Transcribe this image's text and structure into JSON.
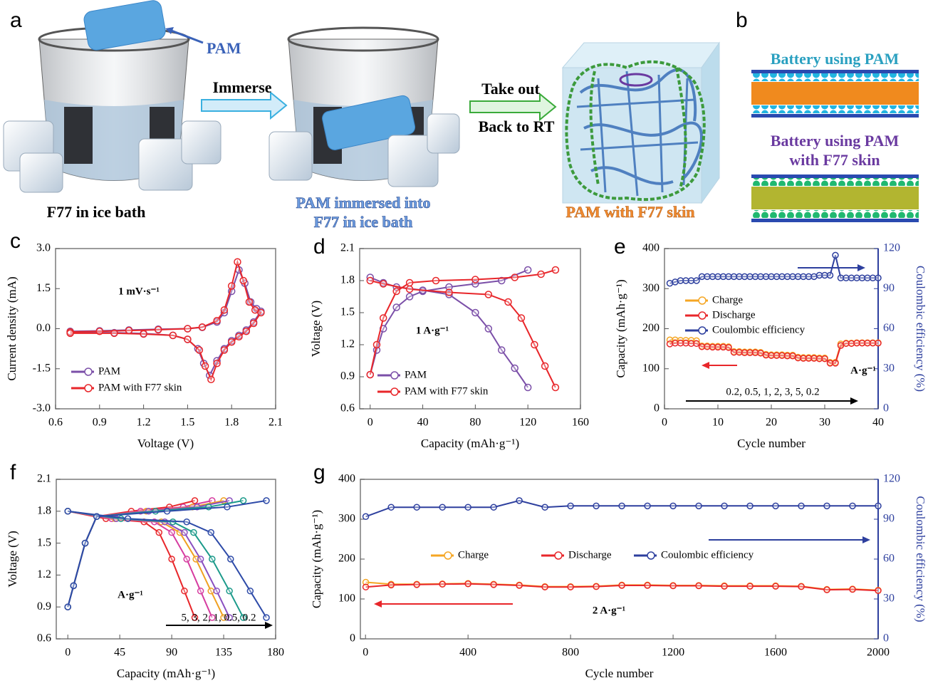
{
  "panel_a": {
    "label": "a",
    "pam": "PAM",
    "step_1": "Immerse",
    "step_2_line_1": "Take out",
    "step_2_line_2": "Back to RT",
    "caption_1": "F77 in ice bath",
    "caption_2_line_1": "PAM immersed into",
    "caption_2_line_2": "F77 in ice bath",
    "caption_3": "PAM with F77 skin"
  },
  "panel_b": {
    "label": "b",
    "title_1": "Battery using PAM",
    "title_2_line_1": "Battery using PAM",
    "title_2_line_2": "with F77 skin"
  },
  "chart_data": [
    {
      "type": "line",
      "label": "c",
      "x_label": "Voltage (V)",
      "y_label": "Current density (mA)",
      "xlim": [
        0.6,
        2.1
      ],
      "xticks": [
        0.6,
        0.9,
        1.2,
        1.5,
        1.8,
        2.1
      ],
      "ylim": [
        -3,
        3
      ],
      "yticks": [
        {
          "value": -3,
          "label": "-3.0"
        },
        -1.5,
        {
          "value": 0,
          "label": "0.0"
        },
        1.5,
        {
          "value": 3,
          "label": "3.0"
        }
      ],
      "legend": "lower left",
      "annotations": [
        "1 mV·s⁻¹"
      ],
      "series": [
        {
          "name": "PAM",
          "color": "#7b4fa8",
          "x": [
            0.7,
            0.9,
            1.1,
            1.3,
            1.5,
            1.6,
            1.7,
            1.75,
            1.8,
            1.85,
            1.89,
            1.93,
            1.97,
            2.0,
            1.95,
            1.9,
            1.85,
            1.8,
            1.75,
            1.7,
            1.65,
            1.61,
            1.57,
            1.5,
            1.4,
            1.2,
            1.0,
            0.7
          ],
          "values": [
            -0.1,
            -0.08,
            -0.05,
            -0.02,
            0.0,
            0.05,
            0.25,
            0.6,
            1.4,
            2.2,
            1.7,
            1.0,
            0.75,
            0.65,
            0.25,
            -0.05,
            -0.25,
            -0.45,
            -0.75,
            -1.2,
            -1.75,
            -1.3,
            -0.75,
            -0.4,
            -0.25,
            -0.18,
            -0.15,
            -0.15
          ]
        },
        {
          "name": "PAM with F77 skin",
          "color": "#e8262a",
          "x": [
            0.7,
            0.9,
            1.1,
            1.3,
            1.5,
            1.6,
            1.7,
            1.75,
            1.8,
            1.84,
            1.88,
            1.92,
            1.96,
            2.0,
            1.95,
            1.9,
            1.85,
            1.8,
            1.75,
            1.7,
            1.66,
            1.62,
            1.58,
            1.5,
            1.4,
            1.2,
            1.0,
            0.7
          ],
          "values": [
            -0.12,
            -0.1,
            -0.07,
            -0.04,
            0.0,
            0.06,
            0.3,
            0.7,
            1.6,
            2.5,
            1.8,
            1.0,
            0.7,
            0.6,
            0.2,
            -0.1,
            -0.3,
            -0.5,
            -0.8,
            -1.3,
            -1.9,
            -1.4,
            -0.8,
            -0.4,
            -0.25,
            -0.2,
            -0.17,
            -0.17
          ]
        }
      ]
    },
    {
      "type": "line",
      "label": "d",
      "x_label": "Capacity (mAh·g⁻¹)",
      "y_label": "Voltage (V)",
      "xlim": [
        -8,
        160
      ],
      "xticks": [
        0,
        40,
        80,
        120,
        160
      ],
      "ylim": [
        0.6,
        2.1
      ],
      "yticks": [
        0.6,
        0.9,
        1.2,
        1.5,
        1.8,
        2.1
      ],
      "legend": "lower left",
      "annotations": [
        "1 A·g⁻¹"
      ],
      "series": [
        {
          "name": "PAM",
          "color": "#7b4fa8",
          "x": [
            0,
            5,
            10,
            20,
            30,
            40,
            60,
            80,
            100,
            120,
            null,
            0,
            10,
            20,
            40,
            60,
            80,
            90,
            100,
            110,
            120
          ],
          "values": [
            0.92,
            1.15,
            1.35,
            1.55,
            1.65,
            1.7,
            1.74,
            1.77,
            1.8,
            1.9,
            null,
            1.83,
            1.78,
            1.74,
            1.71,
            1.67,
            1.5,
            1.35,
            1.15,
            0.98,
            0.8
          ]
        },
        {
          "name": "PAM with F77 skin",
          "color": "#e8262a",
          "x": [
            0,
            5,
            10,
            20,
            30,
            50,
            80,
            110,
            130,
            141,
            null,
            0,
            10,
            30,
            60,
            90,
            105,
            115,
            125,
            133,
            141
          ],
          "values": [
            0.92,
            1.2,
            1.45,
            1.7,
            1.78,
            1.8,
            1.81,
            1.83,
            1.86,
            1.9,
            null,
            1.8,
            1.77,
            1.72,
            1.69,
            1.67,
            1.6,
            1.45,
            1.2,
            1.0,
            0.8
          ]
        }
      ]
    },
    {
      "type": "line",
      "label": "e",
      "x_label": "Cycle number",
      "y_label": "Capacity (mAh·g⁻¹)",
      "y2_label": "Coulombic efficiency (%)",
      "xlim": [
        0,
        40
      ],
      "xticks": [
        0,
        10,
        20,
        30,
        40
      ],
      "ylim": [
        0,
        400
      ],
      "yticks": [
        0,
        100,
        200,
        300,
        400
      ],
      "y2lim": [
        0,
        120
      ],
      "y2ticks": [
        0,
        30,
        60,
        90,
        120
      ],
      "legend": "center left",
      "annotations": [
        "0.2, 0.5, 1, 2, 3, 5, 0.2",
        "A·g⁻¹"
      ],
      "x": [
        1,
        2,
        3,
        4,
        5,
        6,
        7,
        8,
        9,
        10,
        11,
        12,
        13,
        14,
        15,
        16,
        17,
        18,
        19,
        20,
        21,
        22,
        23,
        24,
        25,
        26,
        27,
        28,
        29,
        30,
        31,
        32,
        33,
        34,
        35,
        36,
        37,
        38,
        39,
        40
      ],
      "series": [
        {
          "name": "Charge",
          "color": "#f5a623",
          "values": [
            172,
            172,
            171,
            171,
            171,
            170,
            157,
            157,
            156,
            156,
            156,
            155,
            143,
            143,
            142,
            142,
            142,
            141,
            136,
            135,
            135,
            135,
            134,
            134,
            129,
            128,
            128,
            128,
            127,
            127,
            116,
            116,
            162,
            164,
            164,
            165,
            165,
            165,
            165,
            165
          ]
        },
        {
          "name": "Discharge",
          "color": "#e8262a",
          "values": [
            162,
            164,
            164,
            164,
            163,
            163,
            155,
            155,
            154,
            154,
            154,
            153,
            141,
            141,
            140,
            140,
            140,
            139,
            134,
            133,
            133,
            133,
            132,
            132,
            127,
            126,
            126,
            126,
            125,
            125,
            114,
            114,
            158,
            163,
            163,
            164,
            164,
            164,
            164,
            164
          ]
        },
        {
          "name": "Coulombic efficiency",
          "color": "#2d3f9e",
          "axis": "y2",
          "values": [
            94,
            95,
            96,
            96,
            96,
            96,
            99,
            99,
            99,
            99,
            99,
            99,
            99,
            99,
            99,
            99,
            99,
            99,
            99,
            99,
            99,
            99,
            99,
            99,
            99,
            99,
            99,
            99,
            100,
            100,
            100,
            115,
            98,
            98,
            98,
            98,
            98,
            98,
            98,
            98
          ]
        }
      ]
    },
    {
      "type": "line",
      "label": "f",
      "x_label": "Capacity (mAh·g⁻¹)",
      "y_label": "Voltage (V)",
      "xlim": [
        -10,
        180
      ],
      "xticks": [
        0,
        45,
        90,
        135,
        180
      ],
      "ylim": [
        0.6,
        2.1
      ],
      "yticks": [
        0.6,
        0.9,
        1.2,
        1.5,
        1.8,
        2.1
      ],
      "annotations": [
        "A·g⁻¹",
        "5, 3, 2, 1, 0.5, 0.2"
      ],
      "series": [
        {
          "color": "#e8262a",
          "x": [
            0,
            33,
            66,
            79,
            90,
            101,
            110,
            null,
            0,
            5,
            15,
            25,
            55,
            88,
            110
          ],
          "values": [
            1.8,
            1.73,
            1.7,
            1.6,
            1.35,
            1.05,
            0.8,
            null,
            0.9,
            1.1,
            1.5,
            1.75,
            1.8,
            1.84,
            1.9
          ]
        },
        {
          "color": "#d63ca0",
          "x": [
            0,
            38,
            75,
            90,
            103,
            115,
            125,
            null,
            0,
            5,
            15,
            25,
            63,
            100,
            125
          ],
          "values": [
            1.8,
            1.73,
            1.7,
            1.6,
            1.35,
            1.05,
            0.8,
            null,
            0.9,
            1.1,
            1.5,
            1.75,
            1.8,
            1.84,
            1.9
          ]
        },
        {
          "color": "#f0a020",
          "x": [
            0,
            41,
            81,
            97,
            111,
            124,
            135,
            null,
            0,
            5,
            15,
            25,
            68,
            108,
            135
          ],
          "values": [
            1.8,
            1.73,
            1.7,
            1.6,
            1.35,
            1.05,
            0.8,
            null,
            0.9,
            1.1,
            1.5,
            1.75,
            1.8,
            1.84,
            1.9
          ]
        },
        {
          "color": "#8a4fc0",
          "x": [
            0,
            42,
            84,
            101,
            115,
            129,
            140,
            null,
            0,
            5,
            15,
            25,
            70,
            112,
            140
          ],
          "values": [
            1.8,
            1.73,
            1.7,
            1.6,
            1.35,
            1.05,
            0.8,
            null,
            0.9,
            1.1,
            1.5,
            1.75,
            1.8,
            1.84,
            1.9
          ]
        },
        {
          "color": "#1b9a8a",
          "x": [
            0,
            46,
            91,
            109,
            125,
            140,
            152,
            null,
            0,
            5,
            15,
            25,
            76,
            122,
            152
          ],
          "values": [
            1.8,
            1.73,
            1.7,
            1.6,
            1.35,
            1.05,
            0.8,
            null,
            0.9,
            1.1,
            1.5,
            1.75,
            1.8,
            1.84,
            1.9
          ]
        },
        {
          "color": "#2d4aa8",
          "x": [
            0,
            52,
            103,
            124,
            141,
            158,
            172,
            null,
            0,
            5,
            15,
            25,
            86,
            138,
            172
          ],
          "values": [
            1.8,
            1.73,
            1.7,
            1.6,
            1.35,
            1.05,
            0.8,
            null,
            0.9,
            1.1,
            1.5,
            1.75,
            1.8,
            1.84,
            1.9
          ]
        }
      ]
    },
    {
      "type": "line",
      "label": "g",
      "x_label": "Cycle number",
      "y_label": "Capacity (mAh·g⁻¹)",
      "y2_label": "Coulombic efficiency (%)",
      "xlim": [
        -20,
        2000
      ],
      "xticks": [
        0,
        400,
        800,
        1200,
        1600,
        2000
      ],
      "ylim": [
        0,
        400
      ],
      "yticks": [
        0,
        100,
        200,
        300,
        400
      ],
      "y2lim": [
        0,
        120
      ],
      "y2ticks": [
        0,
        30,
        60,
        90,
        120
      ],
      "legend": "upper center",
      "annotations": [
        "2 A·g⁻¹"
      ],
      "x": [
        1,
        100,
        200,
        300,
        400,
        500,
        600,
        700,
        800,
        900,
        1000,
        1100,
        1200,
        1300,
        1400,
        1500,
        1600,
        1700,
        1800,
        1900,
        2000
      ],
      "series": [
        {
          "name": "Charge",
          "color": "#f5a623",
          "values": [
            142,
            137,
            137,
            138,
            139,
            137,
            135,
            131,
            131,
            132,
            135,
            135,
            134,
            134,
            133,
            133,
            133,
            132,
            124,
            125,
            122
          ]
        },
        {
          "name": "Discharge",
          "color": "#e8262a",
          "values": [
            130,
            135,
            136,
            137,
            138,
            136,
            134,
            130,
            130,
            131,
            134,
            134,
            133,
            133,
            132,
            132,
            132,
            131,
            123,
            124,
            121
          ]
        },
        {
          "name": "Coulombic efficiency",
          "color": "#2d3f9e",
          "axis": "y2",
          "values": [
            92,
            99,
            99,
            99,
            99,
            99,
            104,
            99,
            100,
            100,
            100,
            100,
            100,
            100,
            100,
            100,
            100,
            100,
            100,
            100,
            100
          ]
        }
      ]
    }
  ]
}
